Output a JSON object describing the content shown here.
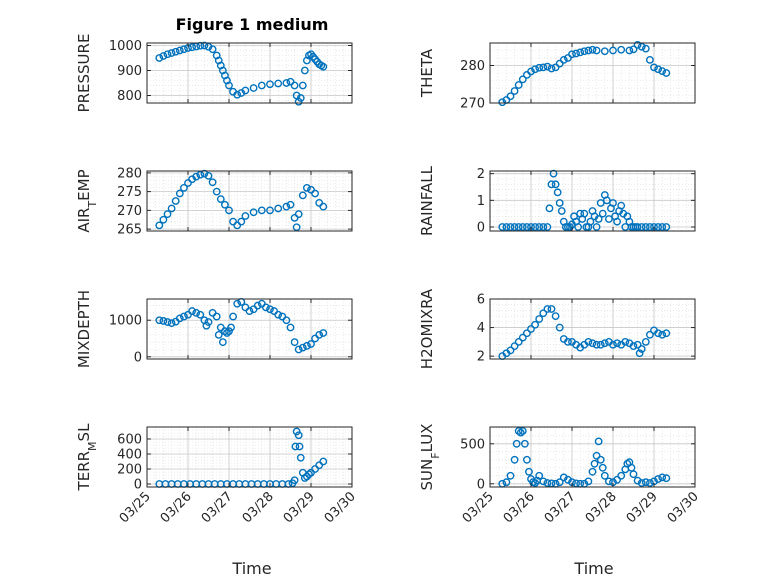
{
  "figure": {
    "title": "Figure 1 medium",
    "xlabel": "Time"
  },
  "chart_data": [
    {
      "type": "scatter",
      "ylabel": "PRESSURE",
      "xlabel": "",
      "ylim": [
        770,
        1010
      ],
      "yticks": [
        800,
        900,
        1000
      ],
      "yticklabels": [
        "800",
        "900",
        "1000"
      ],
      "xlim": [
        "03/25",
        "03/30"
      ],
      "grid": true,
      "color": "#0072BD",
      "x": [
        0.3,
        0.4,
        0.5,
        0.6,
        0.7,
        0.8,
        0.9,
        1.0,
        1.1,
        1.2,
        1.3,
        1.4,
        1.5,
        1.6,
        1.7,
        1.75,
        1.8,
        1.85,
        1.9,
        1.95,
        2.0,
        2.1,
        2.2,
        2.3,
        2.4,
        2.6,
        2.8,
        3.0,
        3.2,
        3.4,
        3.5,
        3.6,
        3.65,
        3.7,
        3.75,
        3.8,
        3.85,
        3.9,
        3.95,
        4.0,
        4.05,
        4.1,
        4.15,
        4.2,
        4.25,
        4.3
      ],
      "y": [
        950,
        958,
        965,
        970,
        975,
        980,
        985,
        990,
        993,
        996,
        999,
        1000,
        995,
        985,
        960,
        940,
        920,
        900,
        880,
        860,
        840,
        815,
        803,
        810,
        820,
        830,
        840,
        845,
        848,
        850,
        855,
        840,
        800,
        775,
        790,
        840,
        900,
        940,
        960,
        965,
        955,
        945,
        935,
        925,
        920,
        915
      ]
    },
    {
      "type": "scatter",
      "ylabel": "THETA",
      "xlabel": "",
      "ylim": [
        270,
        286
      ],
      "yticks": [
        270,
        280
      ],
      "yticklabels": [
        "270",
        "280"
      ],
      "xlim": [
        "03/25",
        "03/30"
      ],
      "grid": true,
      "color": "#0072BD",
      "x": [
        0.3,
        0.4,
        0.5,
        0.6,
        0.7,
        0.8,
        0.9,
        1.0,
        1.1,
        1.2,
        1.3,
        1.4,
        1.5,
        1.6,
        1.7,
        1.8,
        1.9,
        2.0,
        2.1,
        2.2,
        2.3,
        2.4,
        2.5,
        2.6,
        2.8,
        3.0,
        3.2,
        3.4,
        3.5,
        3.6,
        3.7,
        3.8,
        3.9,
        4.0,
        4.1,
        4.2,
        4.3
      ],
      "y": [
        270.2,
        270.8,
        271.8,
        273.2,
        274.8,
        276.3,
        277.5,
        278.4,
        279.0,
        279.4,
        279.5,
        279.7,
        279.2,
        279.5,
        280.5,
        281.5,
        282.0,
        283.0,
        283.2,
        283.5,
        283.8,
        284.0,
        284.2,
        284.0,
        283.8,
        284.0,
        284.2,
        284.0,
        284.3,
        285.5,
        285.0,
        284.5,
        281.5,
        279.5,
        279.0,
        278.5,
        278.0
      ]
    },
    {
      "type": "scatter",
      "ylabel": "AIR_TEMP",
      "xlabel": "",
      "ylim": [
        264.5,
        280.5
      ],
      "yticks": [
        265,
        270,
        275,
        280
      ],
      "yticklabels": [
        "265",
        "270",
        "275",
        "280"
      ],
      "xlim": [
        "03/25",
        "03/30"
      ],
      "grid": true,
      "color": "#0072BD",
      "x": [
        0.3,
        0.4,
        0.5,
        0.6,
        0.7,
        0.8,
        0.9,
        1.0,
        1.1,
        1.2,
        1.3,
        1.4,
        1.5,
        1.6,
        1.7,
        1.8,
        1.9,
        2.0,
        2.1,
        2.2,
        2.3,
        2.4,
        2.6,
        2.8,
        3.0,
        3.2,
        3.4,
        3.5,
        3.6,
        3.65,
        3.7,
        3.8,
        3.9,
        4.0,
        4.1,
        4.2,
        4.3
      ],
      "y": [
        266,
        267.5,
        269,
        270.5,
        272.5,
        274.5,
        276,
        277.3,
        278.3,
        279,
        279.5,
        279.8,
        279.2,
        277.5,
        275,
        273,
        271.5,
        270,
        267,
        266,
        267,
        268.5,
        269.5,
        270,
        270,
        270.5,
        271,
        271.5,
        268,
        265.5,
        269,
        274,
        276,
        275.5,
        274.5,
        272,
        271
      ]
    },
    {
      "type": "scatter",
      "ylabel": "RAINFALL",
      "xlabel": "",
      "ylim": [
        -0.15,
        2.1
      ],
      "yticks": [
        0,
        1,
        2
      ],
      "yticklabels": [
        "0",
        "1",
        "2"
      ],
      "xlim": [
        "03/25",
        "03/30"
      ],
      "grid": true,
      "color": "#0072BD",
      "x": [
        0.3,
        0.4,
        0.5,
        0.6,
        0.7,
        0.8,
        0.9,
        1.0,
        1.1,
        1.2,
        1.3,
        1.4,
        1.45,
        1.5,
        1.55,
        1.6,
        1.65,
        1.7,
        1.75,
        1.8,
        1.85,
        1.9,
        1.95,
        2.0,
        2.05,
        2.1,
        2.15,
        2.2,
        2.25,
        2.3,
        2.35,
        2.4,
        2.45,
        2.5,
        2.55,
        2.6,
        2.65,
        2.7,
        2.75,
        2.8,
        2.85,
        2.9,
        2.95,
        3.0,
        3.05,
        3.1,
        3.15,
        3.2,
        3.25,
        3.3,
        3.35,
        3.4,
        3.45,
        3.5,
        3.55,
        3.6,
        3.7,
        3.8,
        3.9,
        4.0,
        4.1,
        4.2,
        4.3
      ],
      "y": [
        0,
        0,
        0,
        0,
        0,
        0,
        0,
        0,
        0,
        0,
        0,
        0,
        0.7,
        1.6,
        2.0,
        1.6,
        1.3,
        0.9,
        0.6,
        0.2,
        0,
        0,
        0,
        0.1,
        0.4,
        0.2,
        0,
        0.5,
        0.3,
        0.5,
        0,
        0,
        0.2,
        0.6,
        0.4,
        0,
        0.3,
        0.9,
        0.5,
        1.2,
        1.0,
        0.3,
        0.7,
        0.9,
        0.4,
        0.2,
        0.6,
        0.8,
        0.5,
        0,
        0.4,
        0.2,
        0,
        0,
        0,
        0,
        0,
        0,
        0,
        0,
        0,
        0,
        0
      ]
    },
    {
      "type": "scatter",
      "ylabel": "MIXDEPTH",
      "xlabel": "",
      "ylim": [
        -60,
        1580
      ],
      "yticks": [
        0,
        1000
      ],
      "yticklabels": [
        "0",
        "1000"
      ],
      "xlim": [
        "03/25",
        "03/30"
      ],
      "grid": true,
      "color": "#0072BD",
      "x": [
        0.3,
        0.4,
        0.5,
        0.6,
        0.7,
        0.8,
        0.9,
        1.0,
        1.1,
        1.2,
        1.3,
        1.4,
        1.45,
        1.5,
        1.6,
        1.7,
        1.75,
        1.8,
        1.85,
        1.9,
        1.95,
        2.0,
        2.05,
        2.1,
        2.2,
        2.3,
        2.4,
        2.5,
        2.6,
        2.7,
        2.8,
        2.9,
        3.0,
        3.1,
        3.2,
        3.3,
        3.4,
        3.5,
        3.6,
        3.7,
        3.8,
        3.9,
        4.0,
        4.1,
        4.2,
        4.3
      ],
      "y": [
        1000,
        980,
        950,
        920,
        960,
        1050,
        1100,
        1150,
        1250,
        1200,
        1150,
        1000,
        850,
        950,
        1200,
        1100,
        600,
        800,
        400,
        700,
        650,
        700,
        800,
        1100,
        1450,
        1500,
        1350,
        1250,
        1300,
        1400,
        1450,
        1350,
        1300,
        1250,
        1150,
        1100,
        1000,
        800,
        400,
        200,
        250,
        300,
        350,
        500,
        600,
        650
      ]
    },
    {
      "type": "scatter",
      "ylabel": "H2OMIXRA",
      "xlabel": "",
      "ylim": [
        1.8,
        6.0
      ],
      "yticks": [
        2,
        4,
        6
      ],
      "yticklabels": [
        "2",
        "4",
        "6"
      ],
      "xlim": [
        "03/25",
        "03/30"
      ],
      "grid": true,
      "color": "#0072BD",
      "x": [
        0.3,
        0.4,
        0.5,
        0.6,
        0.7,
        0.8,
        0.9,
        1.0,
        1.1,
        1.2,
        1.3,
        1.4,
        1.5,
        1.6,
        1.7,
        1.8,
        1.9,
        2.0,
        2.1,
        2.2,
        2.3,
        2.4,
        2.5,
        2.6,
        2.7,
        2.8,
        2.9,
        3.0,
        3.1,
        3.2,
        3.3,
        3.4,
        3.5,
        3.6,
        3.65,
        3.7,
        3.8,
        3.9,
        4.0,
        4.1,
        4.2,
        4.3
      ],
      "y": [
        2.0,
        2.2,
        2.4,
        2.7,
        3.0,
        3.3,
        3.6,
        3.9,
        4.2,
        4.6,
        5.0,
        5.3,
        5.3,
        4.8,
        4.0,
        3.2,
        3.0,
        3.0,
        2.8,
        2.6,
        2.8,
        3.0,
        2.9,
        2.8,
        2.8,
        2.9,
        3.0,
        2.8,
        2.9,
        2.8,
        3.0,
        2.9,
        2.7,
        2.8,
        2.2,
        2.5,
        3.0,
        3.5,
        3.8,
        3.6,
        3.5,
        3.6
      ]
    },
    {
      "type": "scatter",
      "ylabel": "TERR_MSL",
      "xlabel": "",
      "ylim": [
        -40,
        760
      ],
      "yticks": [
        0,
        200,
        400,
        600
      ],
      "yticklabels": [
        "0",
        "200",
        "400",
        "600"
      ],
      "xlim": [
        "03/25",
        "03/30"
      ],
      "grid": true,
      "color": "#0072BD",
      "x": [
        0.3,
        0.45,
        0.6,
        0.75,
        0.9,
        1.05,
        1.2,
        1.35,
        1.5,
        1.65,
        1.8,
        1.95,
        2.1,
        2.25,
        2.4,
        2.55,
        2.7,
        2.85,
        3.0,
        3.15,
        3.3,
        3.45,
        3.55,
        3.6,
        3.62,
        3.65,
        3.7,
        3.72,
        3.75,
        3.8,
        3.85,
        3.9,
        3.95,
        4.0,
        4.1,
        4.2,
        4.3
      ],
      "y": [
        0,
        0,
        0,
        0,
        0,
        0,
        0,
        0,
        0,
        0,
        0,
        0,
        0,
        0,
        0,
        0,
        0,
        0,
        0,
        0,
        0,
        0,
        10,
        50,
        500,
        700,
        650,
        500,
        350,
        150,
        80,
        100,
        130,
        150,
        200,
        250,
        300
      ]
    },
    {
      "type": "scatter",
      "ylabel": "SUN_FLUX",
      "xlabel": "",
      "ylim": [
        -40,
        710
      ],
      "yticks": [
        0,
        500
      ],
      "yticklabels": [
        "0",
        "500"
      ],
      "xlim": [
        "03/25",
        "03/30"
      ],
      "grid": true,
      "color": "#0072BD",
      "x": [
        0.3,
        0.4,
        0.5,
        0.6,
        0.65,
        0.7,
        0.75,
        0.8,
        0.85,
        0.9,
        0.95,
        1.0,
        1.05,
        1.1,
        1.15,
        1.2,
        1.3,
        1.4,
        1.5,
        1.6,
        1.7,
        1.8,
        1.9,
        2.0,
        2.1,
        2.2,
        2.3,
        2.4,
        2.5,
        2.55,
        2.6,
        2.65,
        2.7,
        2.75,
        2.8,
        2.9,
        3.0,
        3.1,
        3.2,
        3.3,
        3.35,
        3.4,
        3.45,
        3.5,
        3.6,
        3.7,
        3.8,
        3.9,
        4.0,
        4.1,
        4.2,
        4.3
      ],
      "y": [
        0,
        20,
        100,
        300,
        500,
        660,
        640,
        660,
        500,
        300,
        150,
        60,
        20,
        10,
        40,
        100,
        30,
        10,
        5,
        0,
        20,
        80,
        50,
        20,
        5,
        0,
        0,
        30,
        150,
        250,
        350,
        530,
        300,
        200,
        100,
        30,
        20,
        50,
        100,
        180,
        250,
        270,
        200,
        120,
        40,
        10,
        20,
        10,
        30,
        60,
        80,
        70
      ]
    }
  ],
  "axes_layout": {
    "xticks": [
      0,
      1,
      2,
      3,
      4,
      5
    ],
    "xticklabels": [
      "03/25",
      "03/26",
      "03/27",
      "03/28",
      "03/29",
      "03/30"
    ]
  }
}
